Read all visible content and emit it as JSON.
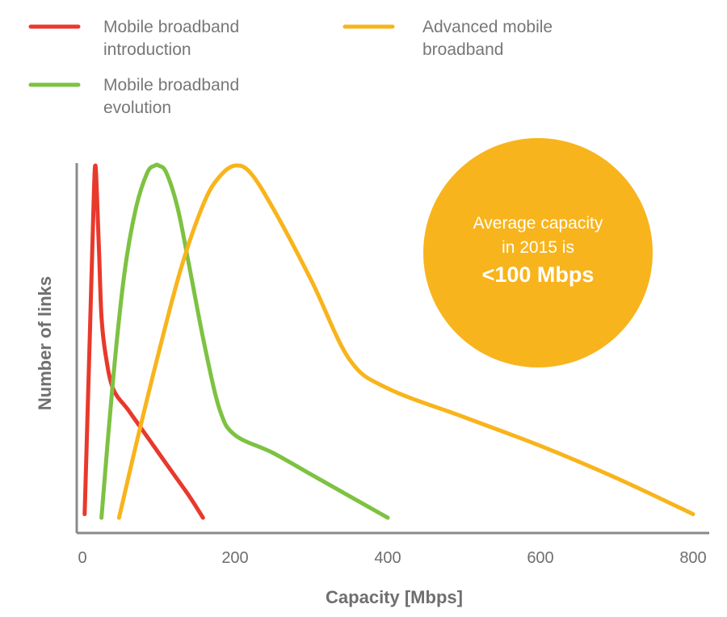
{
  "chart_data": {
    "type": "line",
    "xlabel": "Capacity [Mbps]",
    "ylabel": "Number of links",
    "xlim": [
      0,
      800
    ],
    "ylim": [
      0,
      1
    ],
    "x_ticks": [
      0,
      200,
      400,
      600,
      800
    ],
    "grid": false,
    "legend_placement": "top",
    "series": [
      {
        "name": "Mobile broadband introduction",
        "color": "#e8392c",
        "x": [
          3,
          10,
          15,
          17,
          19,
          22,
          25,
          30,
          40,
          60,
          80,
          100,
          120,
          140,
          158
        ],
        "y": [
          0.03,
          0.55,
          0.92,
          1.0,
          0.92,
          0.75,
          0.58,
          0.48,
          0.38,
          0.32,
          0.26,
          0.2,
          0.14,
          0.08,
          0.02
        ]
      },
      {
        "name": "Mobile broadband evolution",
        "color": "#7dc241",
        "x": [
          25,
          40,
          55,
          70,
          85,
          95,
          100,
          110,
          125,
          140,
          160,
          180,
          200,
          250,
          300,
          350,
          400
        ],
        "y": [
          0.02,
          0.4,
          0.7,
          0.88,
          0.98,
          1.0,
          1.0,
          0.98,
          0.88,
          0.72,
          0.5,
          0.32,
          0.25,
          0.2,
          0.14,
          0.08,
          0.02
        ]
      },
      {
        "name": "Advanced mobile broadband",
        "color": "#f8b41c",
        "x": [
          48,
          70,
          100,
          130,
          160,
          180,
          200,
          220,
          250,
          300,
          350,
          400,
          500,
          600,
          700,
          800
        ],
        "y": [
          0.02,
          0.22,
          0.48,
          0.72,
          0.9,
          0.97,
          1.0,
          0.98,
          0.88,
          0.68,
          0.46,
          0.38,
          0.3,
          0.22,
          0.13,
          0.03
        ]
      }
    ],
    "annotation": {
      "line1": "Average capacity",
      "line2": "in 2015 is",
      "line3": "<100 Mbps",
      "color": "#f8b41c"
    }
  }
}
